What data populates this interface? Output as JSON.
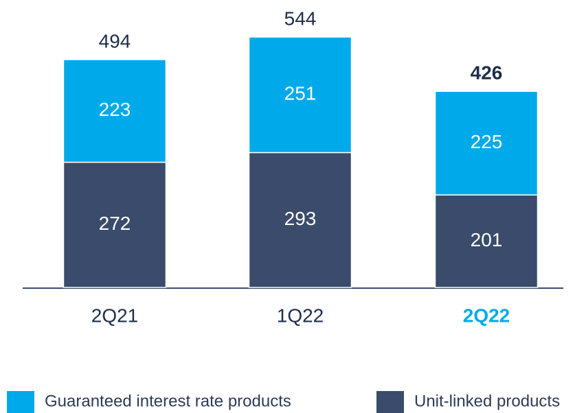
{
  "chart_data": {
    "type": "stacked_bar",
    "categories": [
      "2Q21",
      "1Q22",
      "2Q22"
    ],
    "series": [
      {
        "name": "Unit-linked products",
        "color": "#3a4b6b",
        "values": [
          272,
          293,
          201
        ]
      },
      {
        "name": "Guaranteed interest rate products",
        "color": "#00aaea",
        "values": [
          223,
          251,
          225
        ]
      }
    ],
    "totals": [
      494,
      544,
      426
    ],
    "highlight": "2Q22",
    "highlight_color": "#00aaea"
  }
}
